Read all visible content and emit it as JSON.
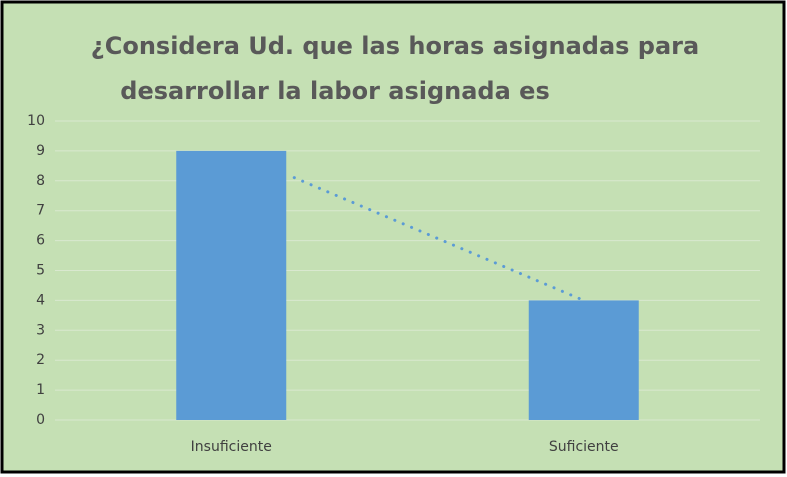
{
  "chart_data": {
    "type": "bar",
    "title": [
      "¿Considera Ud. que las horas asignadas para",
      "desarrollar la labor asignada es"
    ],
    "categories": [
      "Insuficiente",
      "Suficiente"
    ],
    "values": [
      9,
      4
    ],
    "color": "#5b9bd5",
    "ylim": [
      0,
      10
    ],
    "yticks": [
      0,
      1,
      2,
      3,
      4,
      5,
      6,
      7,
      8,
      9,
      10
    ],
    "grid": true,
    "trendline": {
      "style": "dotted",
      "color": "#5b9bd5"
    }
  }
}
